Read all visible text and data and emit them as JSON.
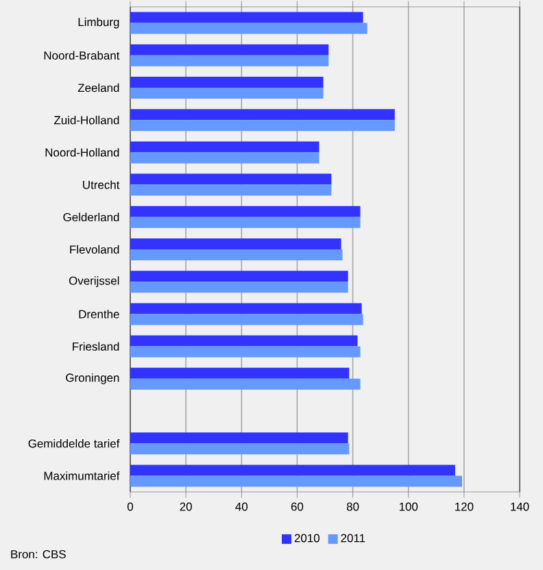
{
  "chart_data": {
    "type": "bar",
    "orientation": "horizontal",
    "categories": [
      "Limburg",
      "Noord-Brabant",
      "Zeeland",
      "Zuid-Holland",
      "Noord-Holland",
      "Utrecht",
      "Gelderland",
      "Flevoland",
      "Overijssel",
      "Drenthe",
      "Friesland",
      "Groningen",
      null,
      "Gemiddelde tarief",
      "Maximumtarief"
    ],
    "series": [
      {
        "name": "2010",
        "color": "#3333ff",
        "values": [
          83.7,
          71.3,
          69.4,
          95.1,
          67.9,
          72.3,
          82.7,
          75.8,
          78.3,
          83.2,
          81.7,
          78.7,
          null,
          78.3,
          116.8
        ]
      },
      {
        "name": "2011",
        "color": "#6699ff",
        "values": [
          85.2,
          71.3,
          69.4,
          95.1,
          67.9,
          72.3,
          82.7,
          76.3,
          78.3,
          83.7,
          82.7,
          82.7,
          null,
          78.7,
          119.3
        ]
      }
    ],
    "xlim": [
      0,
      140
    ],
    "xticks": [
      0,
      20,
      40,
      60,
      80,
      100,
      120,
      140
    ],
    "grid": "x",
    "legend": "bottom",
    "annotations": [
      "Bron: CBS"
    ]
  }
}
